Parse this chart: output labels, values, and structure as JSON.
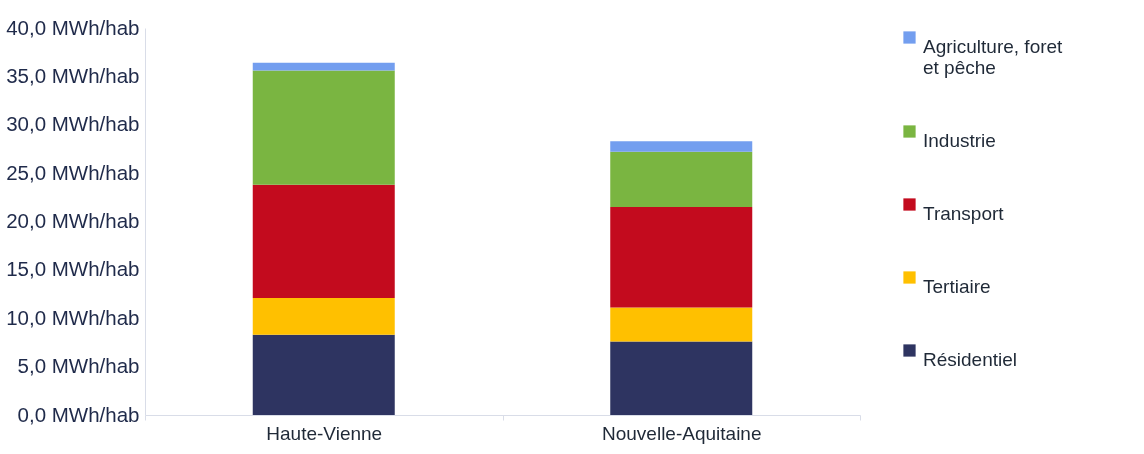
{
  "chart_data": {
    "type": "bar",
    "stacked": true,
    "categories": [
      "Haute-Vienne",
      "Nouvelle-Aquitaine"
    ],
    "series": [
      {
        "name": "Résidentiel",
        "color": "#2e3461",
        "values": [
          8.3,
          7.6
        ]
      },
      {
        "name": "Tertiaire",
        "color": "#ffc000",
        "values": [
          3.8,
          3.5
        ]
      },
      {
        "name": "Transport",
        "color": "#c30b1e",
        "values": [
          11.7,
          10.4
        ]
      },
      {
        "name": "Industrie",
        "color": "#7ab541",
        "values": [
          11.8,
          5.7
        ]
      },
      {
        "name": "Agriculture, foret et pêche",
        "color": "#739eef",
        "values": [
          0.8,
          1.1
        ]
      }
    ],
    "ylim": [
      0,
      40
    ],
    "yticks": [
      {
        "value": 0,
        "label": "0,0 MWh/hab"
      },
      {
        "value": 5,
        "label": "5,0 MWh/hab"
      },
      {
        "value": 10,
        "label": "10,0 MWh/hab"
      },
      {
        "value": 15,
        "label": "15,0 MWh/hab"
      },
      {
        "value": 20,
        "label": "20,0 MWh/hab"
      },
      {
        "value": 25,
        "label": "25,0 MWh/hab"
      },
      {
        "value": 30,
        "label": "30,0 MWh/hab"
      },
      {
        "value": 35,
        "label": "35,0 MWh/hab"
      },
      {
        "value": 40,
        "label": "40,0 MWh/hab"
      }
    ],
    "grid": false,
    "legend": "right"
  }
}
